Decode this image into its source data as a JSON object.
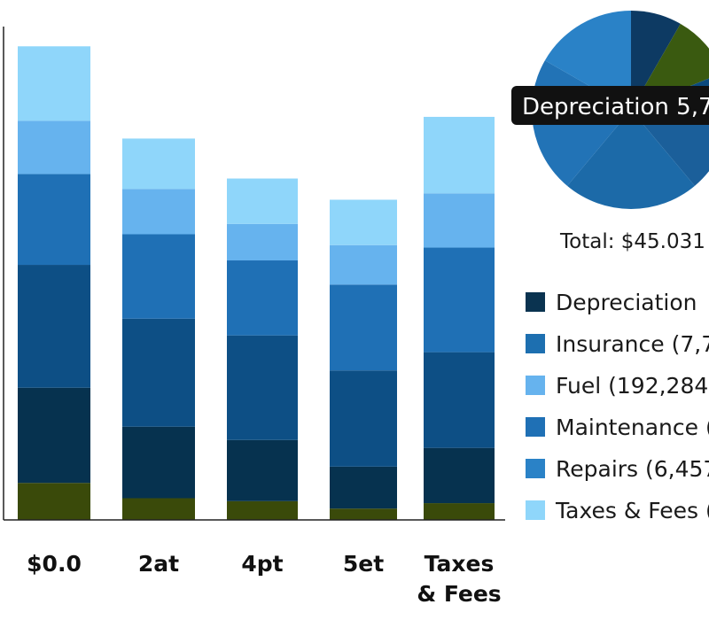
{
  "chart_data": [
    {
      "type": "bar",
      "stacked": true,
      "categories": [
        "$0.0",
        "2at",
        "4pt",
        "5et",
        "Taxes\n& Fees"
      ],
      "segment_colors": [
        "#3a4a0a",
        "#06324f",
        "#0d4f85",
        "#1f70b5",
        "#66b3ee",
        "#8fd6fa"
      ],
      "series": [
        {
          "values": [
            0.075,
            0.044,
            0.038,
            0.023,
            0.034
          ]
        },
        {
          "values": [
            0.193,
            0.145,
            0.124,
            0.085,
            0.112
          ]
        },
        {
          "values": [
            0.249,
            0.219,
            0.212,
            0.195,
            0.194
          ]
        },
        {
          "values": [
            0.184,
            0.171,
            0.152,
            0.174,
            0.212
          ]
        },
        {
          "values": [
            0.108,
            0.092,
            0.074,
            0.08,
            0.11
          ]
        },
        {
          "values": [
            0.151,
            0.102,
            0.092,
            0.092,
            0.155
          ]
        }
      ],
      "ylim": [
        0,
        1
      ],
      "grid": false,
      "xlabel": "",
      "ylabel": ""
    },
    {
      "type": "pie",
      "slices": [
        {
          "value": 8.3,
          "color": "#0d3a63"
        },
        {
          "value": 10.6,
          "color": "#3a5a10"
        },
        {
          "value": 8.9,
          "color": "#0b4a7e"
        },
        {
          "value": 11.1,
          "color": "#1b5f9a"
        },
        {
          "value": 22.2,
          "color": "#1c6aa8"
        },
        {
          "value": 22.2,
          "color": "#2273b6"
        },
        {
          "value": 16.7,
          "color": "#2a82c7"
        }
      ],
      "total_label": "Total: $45.031",
      "tooltip": "Depreciation 5,7",
      "legend": [
        {
          "label": "Depreciation",
          "color": "#0a3350"
        },
        {
          "label": "Insurance (7,7",
          "color": "#1d6fb0"
        },
        {
          "label": "Fuel (192,284)",
          "color": "#66b3ee"
        },
        {
          "label": "Maintenance (",
          "color": "#1f70b5"
        },
        {
          "label": "Repairs (6,457",
          "color": "#2a82c7"
        },
        {
          "label": "Taxes & Fees (",
          "color": "#8fd6fa"
        }
      ],
      "legend_position": "right"
    }
  ]
}
